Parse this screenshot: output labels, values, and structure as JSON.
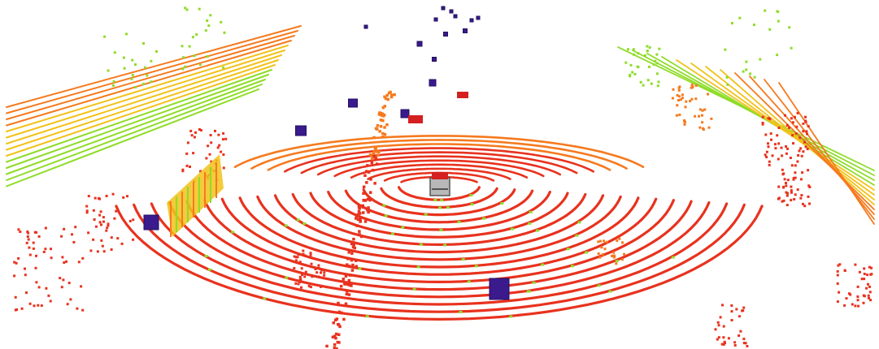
{
  "scene": {
    "background": "#ffffff",
    "palette": {
      "near": "#e8321e",
      "mid": "#f57a1e",
      "far": "#f2c21a",
      "farthest": "#8fdc28",
      "box": "#3a1a8c",
      "box_dark": "#221060",
      "ego_body": "#b8b8b8",
      "ego_top": "#d42020"
    },
    "icons": {
      "ego_vehicle": "car-icon",
      "detections": "cube-icon"
    },
    "detection_count": 17
  }
}
